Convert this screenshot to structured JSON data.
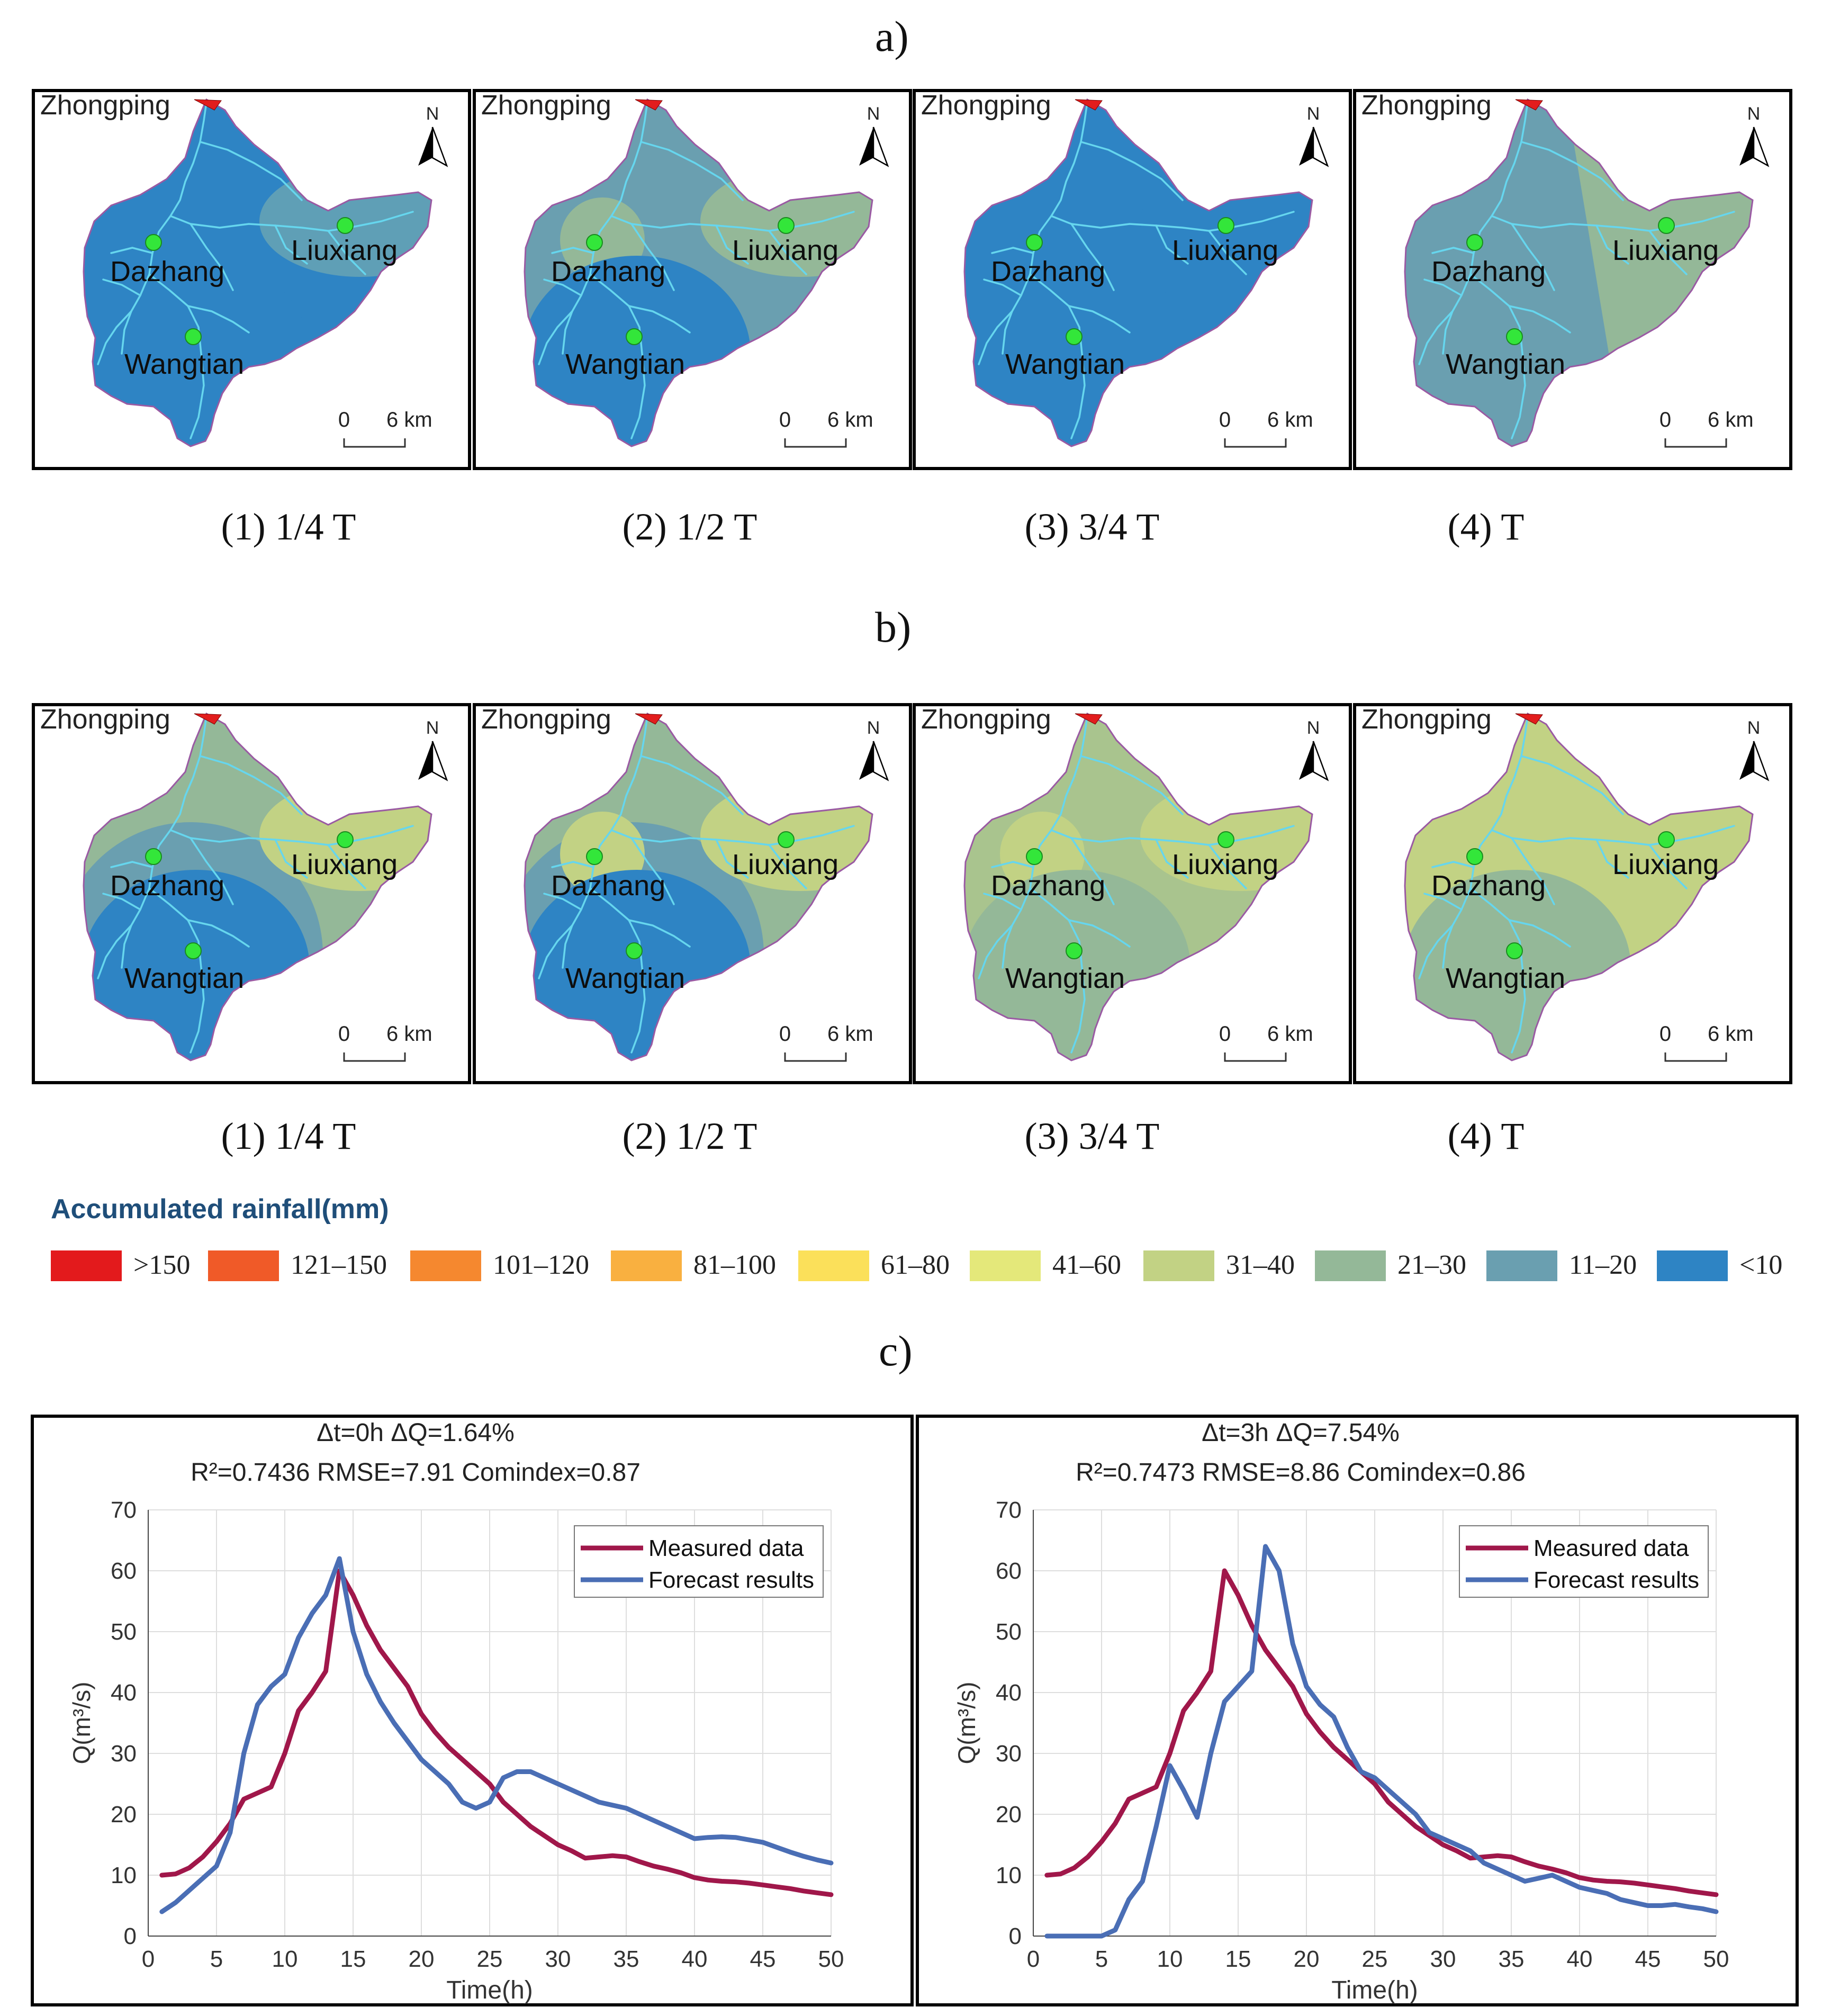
{
  "sections": {
    "a": "a)",
    "b": "b)",
    "c": "c)"
  },
  "map_text": {
    "outlet": "Zhongping",
    "north": "N",
    "scale_zero": "0",
    "scale_dist": "6 km",
    "stations": [
      "Dazhang",
      "Liuxiang",
      "Wangtian"
    ]
  },
  "panels_a": [
    {
      "label": "(1) 1/4 T",
      "zones": {
        "base": "#2e84c4",
        "liuxiang": "#5f9fb6",
        "wangtian": "#2e84c4"
      }
    },
    {
      "label": "(2) 1/2 T",
      "zones": {
        "base": "#6a9fb0",
        "liuxiang": "#94b898",
        "wangtian": "#2e84c4",
        "dazhang": "#94b898"
      }
    },
    {
      "label": "(3) 3/4 T",
      "zones": {
        "base": "#2e84c4",
        "liuxiang": "#2e84c4",
        "wangtian": "#2e84c4"
      }
    },
    {
      "label": "(4) T",
      "zones": {
        "base": "#6a9fb0",
        "east": "#94b898"
      }
    }
  ],
  "panels_b": [
    {
      "label": "(1) 1/4 T",
      "zones": {
        "base": "#94b898",
        "liuxiang": "#c2d284",
        "wangtian": "#2e84c4",
        "ring": "#6a9fb0"
      }
    },
    {
      "label": "(2) 1/2 T",
      "zones": {
        "base": "#94b898",
        "liuxiang": "#c2d284",
        "wangtian": "#2e84c4",
        "ring": "#6a9fb0",
        "dazhang": "#c2d284"
      }
    },
    {
      "label": "(3) 3/4 T",
      "zones": {
        "base": "#a9c48e",
        "liuxiang": "#c2d284",
        "wangtian": "#94b898",
        "dazhang": "#c2d284"
      }
    },
    {
      "label": "(4) T",
      "zones": {
        "base": "#c2d284",
        "wangtian": "#94b898"
      }
    }
  ],
  "legend": {
    "title": "Accumulated rainfall(mm)",
    "items": [
      {
        "label": ">150",
        "color": "#e31a1c"
      },
      {
        "label": "121–150",
        "color": "#f05a28"
      },
      {
        "label": "101–120",
        "color": "#f5882f"
      },
      {
        "label": "81–100",
        "color": "#f9b040"
      },
      {
        "label": "61–80",
        "color": "#fbe05a"
      },
      {
        "label": "41–60",
        "color": "#e4e87a"
      },
      {
        "label": "31–40",
        "color": "#c2d284"
      },
      {
        "label": "21–30",
        "color": "#94b898"
      },
      {
        "label": "11–20",
        "color": "#6a9fb0"
      },
      {
        "label": "<10",
        "color": "#2e84c4"
      }
    ]
  },
  "chart_data": [
    {
      "type": "line",
      "title": "Δt=0h  ΔQ=1.64%",
      "subtitle": "R²=0.7436  RMSE=7.91  Comindex=0.87",
      "xlabel": "Time(h)",
      "ylabel": "Q(m³/s)",
      "xlim": [
        0,
        50
      ],
      "ylim": [
        0,
        70
      ],
      "xticks": [
        0,
        5,
        10,
        15,
        20,
        25,
        30,
        35,
        40,
        45,
        50
      ],
      "yticks": [
        0,
        10,
        20,
        30,
        40,
        50,
        60,
        70
      ],
      "grid": true,
      "legend_position": "top-right",
      "series": [
        {
          "name": "Measured data",
          "color": "#a0174a",
          "x": [
            1,
            2,
            3,
            4,
            5,
            6,
            7,
            8,
            9,
            10,
            11,
            12,
            13,
            14,
            15,
            16,
            17,
            18,
            19,
            20,
            21,
            22,
            23,
            24,
            25,
            26,
            27,
            28,
            29,
            30,
            31,
            32,
            33,
            34,
            35,
            36,
            37,
            38,
            39,
            40,
            41,
            42,
            43,
            44,
            45,
            46,
            47,
            48,
            49,
            50
          ],
          "y": [
            10,
            10.2,
            11.2,
            13,
            15.5,
            18.5,
            22.5,
            23.5,
            24.5,
            30,
            37,
            40,
            43.5,
            60,
            56,
            51,
            47,
            44,
            41,
            36.5,
            33.5,
            31,
            29,
            27,
            25,
            22,
            20,
            18,
            16.5,
            15,
            14,
            12.8,
            13,
            13.2,
            13,
            12.2,
            11.5,
            11,
            10.4,
            9.6,
            9.2,
            9,
            8.9,
            8.7,
            8.4,
            8.1,
            7.8,
            7.4,
            7.1,
            6.8
          ]
        },
        {
          "name": "Forecast results",
          "color": "#4a6eb5",
          "x": [
            1,
            2,
            3,
            4,
            5,
            6,
            7,
            8,
            9,
            10,
            11,
            12,
            13,
            14,
            15,
            16,
            17,
            18,
            19,
            20,
            21,
            22,
            23,
            24,
            25,
            26,
            27,
            28,
            29,
            30,
            31,
            32,
            33,
            34,
            35,
            36,
            37,
            38,
            39,
            40,
            41,
            42,
            43,
            44,
            45,
            46,
            47,
            48,
            49,
            50
          ],
          "y": [
            4,
            5.5,
            7.5,
            9.5,
            11.5,
            17,
            30,
            38,
            41,
            43,
            49,
            53,
            56,
            62,
            50,
            43,
            38.5,
            35,
            32,
            29,
            27,
            25,
            22,
            21,
            22,
            26,
            27,
            27,
            26,
            25,
            24,
            23,
            22,
            21.5,
            21,
            20,
            19,
            18,
            17,
            16,
            16.2,
            16.3,
            16.2,
            15.8,
            15.4,
            14.6,
            13.8,
            13.1,
            12.5,
            12
          ]
        }
      ]
    },
    {
      "type": "line",
      "title": "Δt=3h  ΔQ=7.54%",
      "subtitle": "R²=0.7473  RMSE=8.86  Comindex=0.86",
      "xlabel": "Time(h)",
      "ylabel": "Q(m³/s)",
      "xlim": [
        0,
        50
      ],
      "ylim": [
        0,
        70
      ],
      "xticks": [
        0,
        5,
        10,
        15,
        20,
        25,
        30,
        35,
        40,
        45,
        50
      ],
      "yticks": [
        0,
        10,
        20,
        30,
        40,
        50,
        60,
        70
      ],
      "grid": true,
      "legend_position": "top-right",
      "series": [
        {
          "name": "Measured data",
          "color": "#a0174a",
          "x": [
            1,
            2,
            3,
            4,
            5,
            6,
            7,
            8,
            9,
            10,
            11,
            12,
            13,
            14,
            15,
            16,
            17,
            18,
            19,
            20,
            21,
            22,
            23,
            24,
            25,
            26,
            27,
            28,
            29,
            30,
            31,
            32,
            33,
            34,
            35,
            36,
            37,
            38,
            39,
            40,
            41,
            42,
            43,
            44,
            45,
            46,
            47,
            48,
            49,
            50
          ],
          "y": [
            10,
            10.2,
            11.2,
            13,
            15.5,
            18.5,
            22.5,
            23.5,
            24.5,
            30,
            37,
            40,
            43.5,
            60,
            56,
            51,
            47,
            44,
            41,
            36.5,
            33.5,
            31,
            29,
            27,
            25,
            22,
            20,
            18,
            16.5,
            15,
            14,
            12.8,
            13,
            13.2,
            13,
            12.2,
            11.5,
            11,
            10.4,
            9.6,
            9.2,
            9,
            8.9,
            8.7,
            8.4,
            8.1,
            7.8,
            7.4,
            7.1,
            6.8
          ]
        },
        {
          "name": "Forecast results",
          "color": "#4a6eb5",
          "x": [
            1,
            2,
            3,
            4,
            5,
            6,
            7,
            8,
            9,
            10,
            11,
            12,
            13,
            14,
            15,
            16,
            17,
            18,
            19,
            20,
            21,
            22,
            23,
            24,
            25,
            26,
            27,
            28,
            29,
            30,
            31,
            32,
            33,
            34,
            35,
            36,
            37,
            38,
            39,
            40,
            41,
            42,
            43,
            44,
            45,
            46,
            47,
            48,
            49,
            50
          ],
          "y": [
            0,
            0,
            0,
            0,
            0,
            1,
            6,
            9,
            18,
            28,
            24,
            19.5,
            30,
            38.5,
            41,
            43.5,
            64,
            60,
            48,
            41,
            38,
            36,
            31,
            27,
            26,
            24,
            22,
            20,
            17,
            16,
            15,
            14,
            12,
            11,
            10,
            9,
            9.5,
            10,
            9,
            8,
            7.5,
            7,
            6,
            5.5,
            5,
            5,
            5.2,
            4.8,
            4.5,
            4
          ]
        }
      ]
    }
  ]
}
